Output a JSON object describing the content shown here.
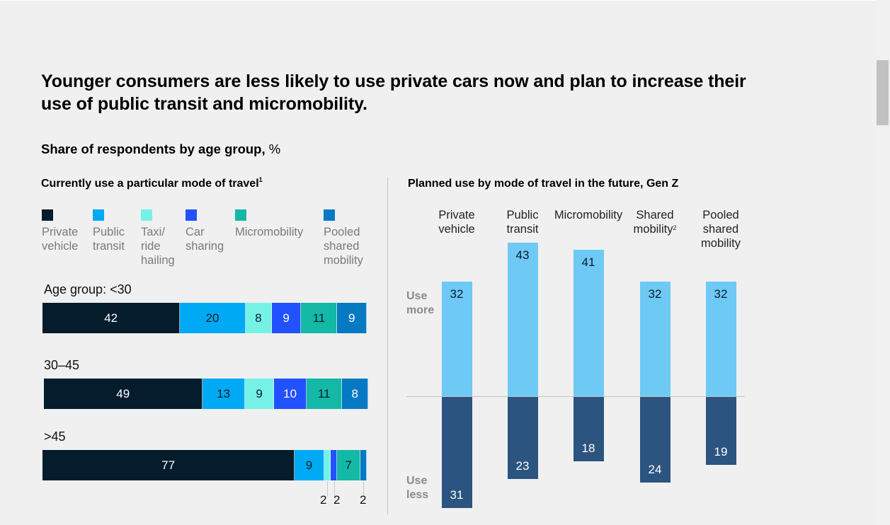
{
  "title": "Younger consumers are less likely to use private cars now and plan to increase their use of public transit and micromobility.",
  "subtitle": "Share of respondents by age group,",
  "subtitle_unit": "%",
  "left_panel": {
    "title": "Currently use a particular mode of travel",
    "footnote_marker": "1"
  },
  "right_panel": {
    "title": "Planned use by mode of travel in the future, Gen Z",
    "use_more_label": "Use\nmore",
    "use_less_label": "Use\nless"
  },
  "colors": {
    "private_vehicle": "#051c2c",
    "public_transit": "#00a9f4",
    "taxi_ride_hailing": "#76f1e6",
    "car_sharing": "#2251ff",
    "micromobility": "#14b8a6",
    "pooled_shared_mobility": "#0679c3",
    "use_more": "#6ec9f5",
    "use_less": "#2b5580"
  },
  "chart_data": [
    {
      "type": "bar",
      "orientation": "horizontal",
      "stacked": true,
      "title": "Currently use a particular mode of travel",
      "unit": "%",
      "categories": [
        "Age group: <30",
        "30–45",
        ">45"
      ],
      "series": [
        {
          "name": "Private vehicle",
          "legend_label": "Private\nvehicle",
          "color_key": "private_vehicle",
          "values": [
            42,
            49,
            77
          ]
        },
        {
          "name": "Public transit",
          "legend_label": "Public\ntransit",
          "color_key": "public_transit",
          "values": [
            20,
            13,
            9
          ]
        },
        {
          "name": "Taxi/ride hailing",
          "legend_label": "Taxi/\nride\nhailing",
          "color_key": "taxi_ride_hailing",
          "values": [
            8,
            9,
            2
          ]
        },
        {
          "name": "Car sharing",
          "legend_label": "Car\nsharing",
          "color_key": "car_sharing",
          "values": [
            9,
            10,
            2
          ]
        },
        {
          "name": "Micromobility",
          "legend_label": "Micromobility",
          "color_key": "micromobility",
          "values": [
            11,
            11,
            7
          ]
        },
        {
          "name": "Pooled shared mobility",
          "legend_label": "Pooled\nshared\nmobility",
          "color_key": "pooled_shared_mobility",
          "values": [
            9,
            8,
            2
          ]
        }
      ],
      "legend": "top",
      "data_labels": true,
      "callouts": "small segments labeled below bar with leader lines"
    },
    {
      "type": "bar",
      "orientation": "vertical",
      "diverging": true,
      "title": "Planned use by mode of travel in the future, Gen Z",
      "unit": "%",
      "categories": [
        "Private vehicle",
        "Public transit",
        "Micromobility",
        "Shared mobility",
        "Pooled shared mobility"
      ],
      "category_labels": [
        "Private\nvehicle",
        "Public\ntransit",
        "Micromobility",
        "Shared\nmobility",
        "Pooled\nshared\nmobility"
      ],
      "category_footnotes": [
        "",
        "",
        "",
        "2",
        ""
      ],
      "series": [
        {
          "name": "Use more",
          "color_key": "use_more",
          "values": [
            32,
            43,
            41,
            32,
            32
          ]
        },
        {
          "name": "Use less",
          "color_key": "use_less",
          "values": [
            31,
            23,
            18,
            24,
            19
          ]
        }
      ],
      "ylim": [
        -31,
        43
      ],
      "grid": false,
      "data_labels": true
    }
  ]
}
